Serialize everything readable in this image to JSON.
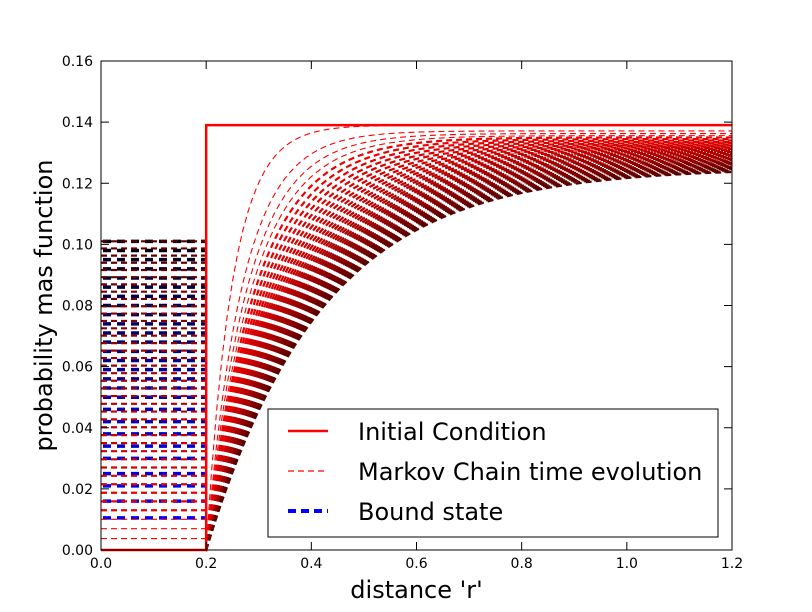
{
  "chart_data": {
    "type": "line",
    "title": "",
    "xlabel": "distance 'r'",
    "ylabel": "probability mas function",
    "xlim": [
      0.0,
      1.2
    ],
    "ylim": [
      0.0,
      0.16
    ],
    "xticks": [
      "0.0",
      "0.2",
      "0.4",
      "0.6",
      "0.8",
      "1.0",
      "1.2"
    ],
    "yticks": [
      "0.00",
      "0.02",
      "0.04",
      "0.06",
      "0.08",
      "0.10",
      "0.12",
      "0.14",
      "0.16"
    ],
    "grid": false,
    "legend_position": "lower-right",
    "legend": [
      {
        "label": "Initial Condition",
        "style": "solid",
        "color": "#ff0000"
      },
      {
        "label": "Markov Chain time evolution",
        "style": "dashed",
        "color": "#ff0000"
      },
      {
        "label": "Bound state",
        "style": "dashed",
        "color": "#0000ff"
      }
    ],
    "initial_condition": {
      "x": [
        0.0,
        0.2,
        0.2,
        1.2
      ],
      "y": [
        0.0,
        0.0,
        0.139,
        0.139
      ]
    },
    "markov_evolution": {
      "description": "family of relaxing curves from step at r=0.2 toward plateau",
      "curve_count": 40,
      "step_x": 0.2,
      "plateau_initial": 0.139,
      "plateau_final": 0.125,
      "inner_level_final": 0.101,
      "color_start": "#ff0000",
      "color_end": "#5a0000"
    },
    "bound_state": {
      "x_range": [
        0.0,
        0.2
      ],
      "levels": [
        0.0105,
        0.016,
        0.021,
        0.025,
        0.03,
        0.034,
        0.038,
        0.042,
        0.046,
        0.05,
        0.053,
        0.056,
        0.059,
        0.062,
        0.065,
        0.068,
        0.071,
        0.074,
        0.077,
        0.08,
        0.083,
        0.086,
        0.089,
        0.092,
        0.095,
        0.098,
        0.101
      ],
      "color_start": "#0000ff",
      "color_end": "#000010"
    }
  }
}
